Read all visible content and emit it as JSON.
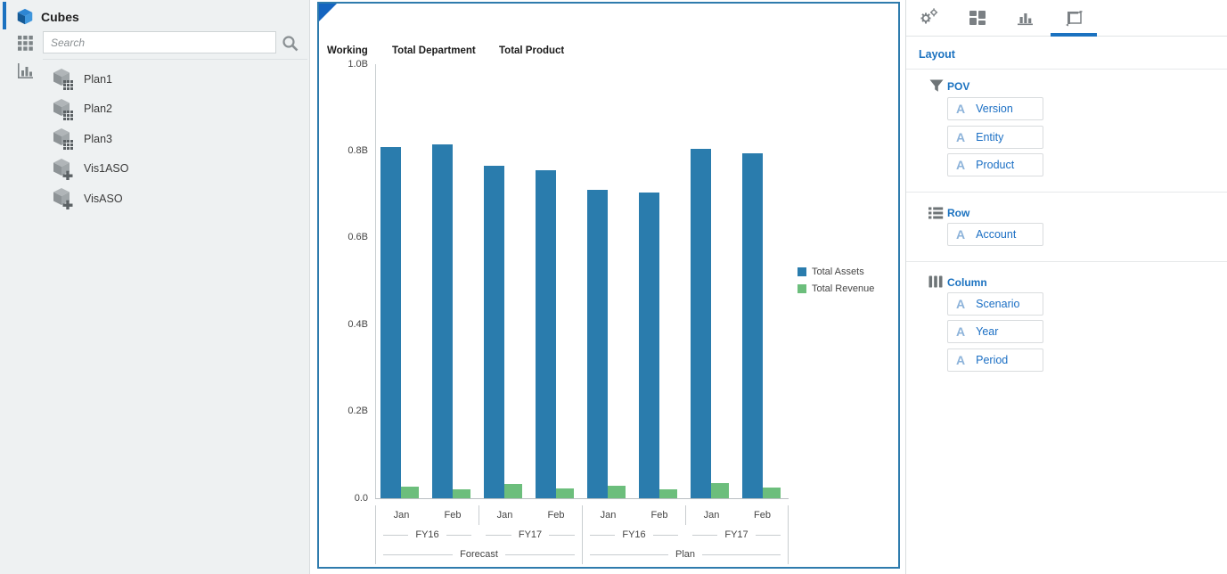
{
  "sidebar": {
    "title": "Cubes",
    "search": {
      "placeholder": "Search"
    },
    "items": [
      {
        "label": "Plan1",
        "icon": "cube-grid-icon"
      },
      {
        "label": "Plan2",
        "icon": "cube-grid-icon"
      },
      {
        "label": "Plan3",
        "icon": "cube-grid-icon"
      },
      {
        "label": "Vis1ASO",
        "icon": "cube-plus-icon"
      },
      {
        "label": "VisASO",
        "icon": "cube-plus-icon"
      }
    ]
  },
  "pov_bar": {
    "members": [
      "Working",
      "Total Department",
      "Total Product"
    ]
  },
  "chart_data": {
    "type": "bar",
    "title": "",
    "xlabel": "",
    "ylabel": "",
    "ylim": [
      0,
      1.0
    ],
    "y_unit": "B",
    "y_ticks": [
      "1.0B",
      "0.8B",
      "0.6B",
      "0.4B",
      "0.2B",
      "0.0"
    ],
    "grid": false,
    "legend_position": "right",
    "x_hierarchy": {
      "months": [
        "Jan",
        "Feb",
        "Jan",
        "Feb",
        "Jan",
        "Feb",
        "Jan",
        "Feb"
      ],
      "years": [
        "FY16",
        "FY17",
        "FY16",
        "FY17"
      ],
      "scenarios": [
        "Forecast",
        "Plan"
      ]
    },
    "series": [
      {
        "name": "Total Assets",
        "color": "#2a7cad",
        "values_billions": [
          0.81,
          0.815,
          0.765,
          0.755,
          0.71,
          0.705,
          0.805,
          0.795
        ]
      },
      {
        "name": "Total Revenue",
        "color": "#6cbe7c",
        "values_billions": [
          0.027,
          0.021,
          0.033,
          0.023,
          0.029,
          0.021,
          0.035,
          0.025
        ]
      }
    ]
  },
  "right_panel": {
    "tabs": [
      {
        "icon": "gears-icon",
        "active": false
      },
      {
        "icon": "tiles-icon",
        "active": false
      },
      {
        "icon": "bar-chart-icon",
        "active": false
      },
      {
        "icon": "layout-frame-icon",
        "active": true
      }
    ],
    "title": "Layout",
    "dim_letter": "A",
    "sections": [
      {
        "name": "POV",
        "icon": "filter-icon",
        "items": [
          "Version",
          "Entity",
          "Product"
        ]
      },
      {
        "name": "Row",
        "icon": "rows-icon",
        "items": [
          "Account"
        ]
      },
      {
        "name": "Column",
        "icon": "columns-icon",
        "items": [
          "Scenario",
          "Year",
          "Period"
        ]
      }
    ]
  },
  "colors": {
    "accent_blue": "#1b72c0",
    "chart_border": "#2e7bad",
    "bar_blue": "#2a7cad",
    "bar_green": "#6cbe7c",
    "sidebar_bg": "#eef1f2"
  }
}
